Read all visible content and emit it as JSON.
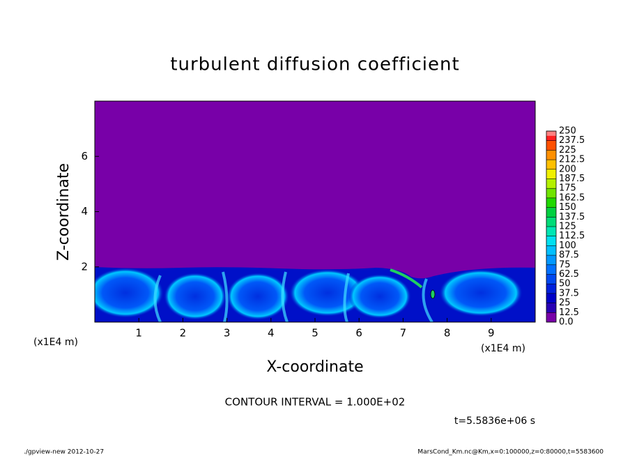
{
  "chart_data": {
    "type": "contour",
    "title": "turbulent diffusion coefficient",
    "x_label": "X-coordinate",
    "y_label": "Z-coordinate",
    "x_unit": "(x1E4 m)",
    "xlim": [
      0,
      10
    ],
    "xticks": [
      1,
      2,
      3,
      4,
      5,
      6,
      7,
      8,
      9
    ],
    "ylim": [
      0,
      8
    ],
    "yticks": [
      2,
      4,
      6
    ],
    "colorbar": {
      "levels": [
        {
          "value": 0,
          "label": "0.0"
        },
        12.5,
        25,
        37.5,
        50,
        62.5,
        75,
        87.5,
        100,
        112.5,
        125,
        137.5,
        150,
        162.5,
        175,
        187.5,
        200,
        212.5,
        225,
        237.5,
        250
      ],
      "colors": [
        "#7800a8",
        "#2800b4",
        "#0000c8",
        "#0020dc",
        "#0048f0",
        "#0070ff",
        "#0098ff",
        "#00c0ff",
        "#00e0f0",
        "#00e6b4",
        "#00dc78",
        "#00d040",
        "#20d800",
        "#70e400",
        "#b4f000",
        "#f0f000",
        "#ffc000",
        "#ff9000",
        "#ff5000",
        "#ff2020"
      ]
    },
    "colorbar_top_color": "#ff8c8c",
    "contour_interval": "CONTOUR INTERVAL = 1.000E+02",
    "time_label": "t=5.5836e+06 s",
    "footer_left": "./gpview-new  2012-10-27",
    "footer_right": "MarsCond_Km.nc@Km,x=0:100000,z=0:80000,t=5583600"
  }
}
